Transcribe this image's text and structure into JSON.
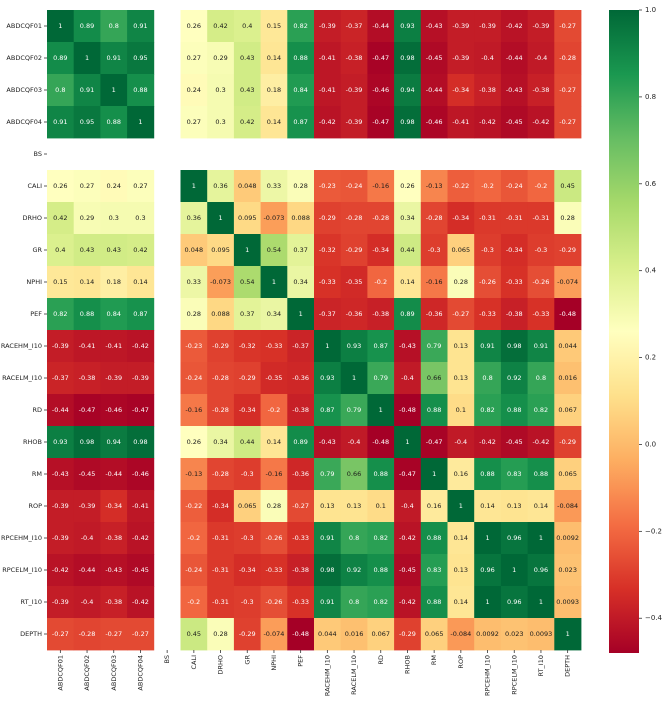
{
  "chart_data": {
    "type": "heatmap",
    "title": "",
    "xlabel": "",
    "ylabel": "",
    "variables": [
      "ABDCQF01",
      "ABDCQF02",
      "ABDCQF03",
      "ABDCQF04",
      "BS",
      "CALI",
      "DRHO",
      "GR",
      "NPHI",
      "PEF",
      "RACEHM_I10",
      "RACELM_I10",
      "RD",
      "RHOB",
      "RM",
      "ROP",
      "RPCEHM_I10",
      "RPCELM_I10",
      "RT_I10",
      "DEPTH"
    ],
    "matrix": [
      [
        "1",
        "0.89",
        "0.8",
        "0.91",
        null,
        "0.26",
        "0.42",
        "0.4",
        "0.15",
        "0.82",
        "-0.39",
        "-0.37",
        "-0.44",
        "0.93",
        "-0.43",
        "-0.39",
        "-0.39",
        "-0.42",
        "-0.39",
        "-0.27"
      ],
      [
        "0.89",
        "1",
        "0.91",
        "0.95",
        null,
        "0.27",
        "0.29",
        "0.43",
        "0.14",
        "0.88",
        "-0.41",
        "-0.38",
        "-0.47",
        "0.98",
        "-0.45",
        "-0.39",
        "-0.4",
        "-0.44",
        "-0.4",
        "-0.28"
      ],
      [
        "0.8",
        "0.91",
        "1",
        "0.88",
        null,
        "0.24",
        "0.3",
        "0.43",
        "0.18",
        "0.84",
        "-0.41",
        "-0.39",
        "-0.46",
        "0.94",
        "-0.44",
        "-0.34",
        "-0.38",
        "-0.43",
        "-0.38",
        "-0.27"
      ],
      [
        "0.91",
        "0.95",
        "0.88",
        "1",
        null,
        "0.27",
        "0.3",
        "0.42",
        "0.14",
        "0.87",
        "-0.42",
        "-0.39",
        "-0.47",
        "0.98",
        "-0.46",
        "-0.41",
        "-0.42",
        "-0.45",
        "-0.42",
        "-0.27"
      ],
      [
        null,
        null,
        null,
        null,
        null,
        null,
        null,
        null,
        null,
        null,
        null,
        null,
        null,
        null,
        null,
        null,
        null,
        null,
        null,
        null
      ],
      [
        "0.26",
        "0.27",
        "0.24",
        "0.27",
        null,
        "1",
        "0.36",
        "0.048",
        "0.33",
        "0.28",
        "-0.23",
        "-0.24",
        "-0.16",
        "0.26",
        "-0.13",
        "-0.22",
        "-0.2",
        "-0.24",
        "-0.2",
        "0.45"
      ],
      [
        "0.42",
        "0.29",
        "0.3",
        "0.3",
        null,
        "0.36",
        "1",
        "0.095",
        "-0.073",
        "0.088",
        "-0.29",
        "-0.28",
        "-0.28",
        "0.34",
        "-0.28",
        "-0.34",
        "-0.31",
        "-0.31",
        "-0.31",
        "0.28"
      ],
      [
        "0.4",
        "0.43",
        "0.43",
        "0.42",
        null,
        "0.048",
        "0.095",
        "1",
        "0.54",
        "0.37",
        "-0.32",
        "-0.29",
        "-0.34",
        "0.44",
        "-0.3",
        "0.065",
        "-0.3",
        "-0.34",
        "-0.3",
        "-0.29"
      ],
      [
        "0.15",
        "0.14",
        "0.18",
        "0.14",
        null,
        "0.33",
        "-0.073",
        "0.54",
        "1",
        "0.34",
        "-0.33",
        "-0.35",
        "-0.2",
        "0.14",
        "-0.16",
        "0.28",
        "-0.26",
        "-0.33",
        "-0.26",
        "-0.074"
      ],
      [
        "0.82",
        "0.88",
        "0.84",
        "0.87",
        null,
        "0.28",
        "0.088",
        "0.37",
        "0.34",
        "1",
        "-0.37",
        "-0.36",
        "-0.38",
        "0.89",
        "-0.36",
        "-0.27",
        "-0.33",
        "-0.38",
        "-0.33",
        "-0.48"
      ],
      [
        "-0.39",
        "-0.41",
        "-0.41",
        "-0.42",
        null,
        "-0.23",
        "-0.29",
        "-0.32",
        "-0.33",
        "-0.37",
        "1",
        "0.93",
        "0.87",
        "-0.43",
        "0.79",
        "0.13",
        "0.91",
        "0.98",
        "0.91",
        "0.044"
      ],
      [
        "-0.37",
        "-0.38",
        "-0.39",
        "-0.39",
        null,
        "-0.24",
        "-0.28",
        "-0.29",
        "-0.35",
        "-0.36",
        "0.93",
        "1",
        "0.79",
        "-0.4",
        "0.66",
        "0.13",
        "0.8",
        "0.92",
        "0.8",
        "0.016"
      ],
      [
        "-0.44",
        "-0.47",
        "-0.46",
        "-0.47",
        null,
        "-0.16",
        "-0.28",
        "-0.34",
        "-0.2",
        "-0.38",
        "0.87",
        "0.79",
        "1",
        "-0.48",
        "0.88",
        "0.1",
        "0.82",
        "0.88",
        "0.82",
        "0.067"
      ],
      [
        "0.93",
        "0.98",
        "0.94",
        "0.98",
        null,
        "0.26",
        "0.34",
        "0.44",
        "0.14",
        "0.89",
        "-0.43",
        "-0.4",
        "-0.48",
        "1",
        "-0.47",
        "-0.4",
        "-0.42",
        "-0.45",
        "-0.42",
        "-0.29"
      ],
      [
        "-0.43",
        "-0.45",
        "-0.44",
        "-0.46",
        null,
        "-0.13",
        "-0.28",
        "-0.3",
        "-0.16",
        "-0.36",
        "0.79",
        "0.66",
        "0.88",
        "-0.47",
        "1",
        "0.16",
        "0.88",
        "0.83",
        "0.88",
        "0.065"
      ],
      [
        "-0.39",
        "-0.39",
        "-0.34",
        "-0.41",
        null,
        "-0.22",
        "-0.34",
        "0.065",
        "0.28",
        "-0.27",
        "0.13",
        "0.13",
        "0.1",
        "-0.4",
        "0.16",
        "1",
        "0.14",
        "0.13",
        "0.14",
        "-0.084"
      ],
      [
        "-0.39",
        "-0.4",
        "-0.38",
        "-0.42",
        null,
        "-0.2",
        "-0.31",
        "-0.3",
        "-0.26",
        "-0.33",
        "0.91",
        "0.8",
        "0.82",
        "-0.42",
        "0.88",
        "0.14",
        "1",
        "0.96",
        "1",
        "0.0092"
      ],
      [
        "-0.42",
        "-0.44",
        "-0.43",
        "-0.45",
        null,
        "-0.24",
        "-0.31",
        "-0.34",
        "-0.33",
        "-0.38",
        "0.98",
        "0.92",
        "0.88",
        "-0.45",
        "0.83",
        "0.13",
        "0.96",
        "1",
        "0.96",
        "0.023"
      ],
      [
        "-0.39",
        "-0.4",
        "-0.38",
        "-0.42",
        null,
        "-0.2",
        "-0.31",
        "-0.3",
        "-0.26",
        "-0.33",
        "0.91",
        "0.8",
        "0.82",
        "-0.42",
        "0.88",
        "0.14",
        "1",
        "0.96",
        "1",
        "0.0093"
      ],
      [
        "-0.27",
        "-0.28",
        "-0.27",
        "-0.27",
        null,
        "0.45",
        "0.28",
        "-0.29",
        "-0.074",
        "-0.48",
        "0.044",
        "0.016",
        "0.067",
        "-0.29",
        "0.065",
        "-0.084",
        "0.0092",
        "0.023",
        "0.0093",
        "1"
      ]
    ],
    "colormap": "RdYlGn",
    "colormap_stops": [
      "#a50026",
      "#d73027",
      "#f46d43",
      "#fdae61",
      "#fee08b",
      "#ffffbf",
      "#d9ef8b",
      "#a6d96a",
      "#66bd63",
      "#1a9850",
      "#006837"
    ],
    "vmin": -0.48,
    "vmax": 1.0,
    "colorbar": {
      "ticks": [
        1.0,
        0.8,
        0.6,
        0.4,
        0.2,
        0.0,
        -0.2,
        -0.4
      ],
      "tick_labels": [
        "1.0",
        "0.8",
        "0.6",
        "0.4",
        "0.2",
        "0.0",
        "−0.2",
        "−0.4"
      ]
    },
    "annotated": true,
    "grid": false,
    "legend": "colorbar-right"
  }
}
